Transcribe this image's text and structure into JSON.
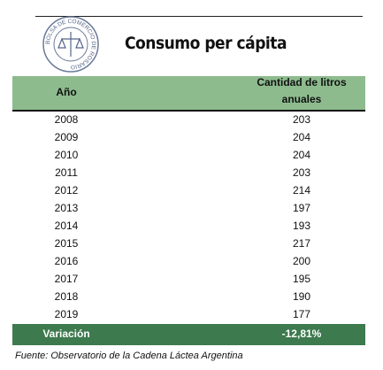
{
  "logo": {
    "text": "BOLSA DE COMERCIO DE ROSARIO"
  },
  "title": "Consumo per cápita",
  "table": {
    "header": [
      "Año",
      "Cantidad de litros anuales"
    ],
    "rows": [
      [
        "2008",
        203
      ],
      [
        "2009",
        204
      ],
      [
        "2010",
        204
      ],
      [
        "2011",
        203
      ],
      [
        "2012",
        214
      ],
      [
        "2013",
        197
      ],
      [
        "2014",
        193
      ],
      [
        "2015",
        217
      ],
      [
        "2016",
        200
      ],
      [
        "2017",
        195
      ],
      [
        "2018",
        190
      ],
      [
        "2019",
        177
      ]
    ],
    "footer": [
      "Variación",
      "-12,81%"
    ]
  },
  "source": "Fuente: Observatorio de la Cadena Láctea Argentina"
}
